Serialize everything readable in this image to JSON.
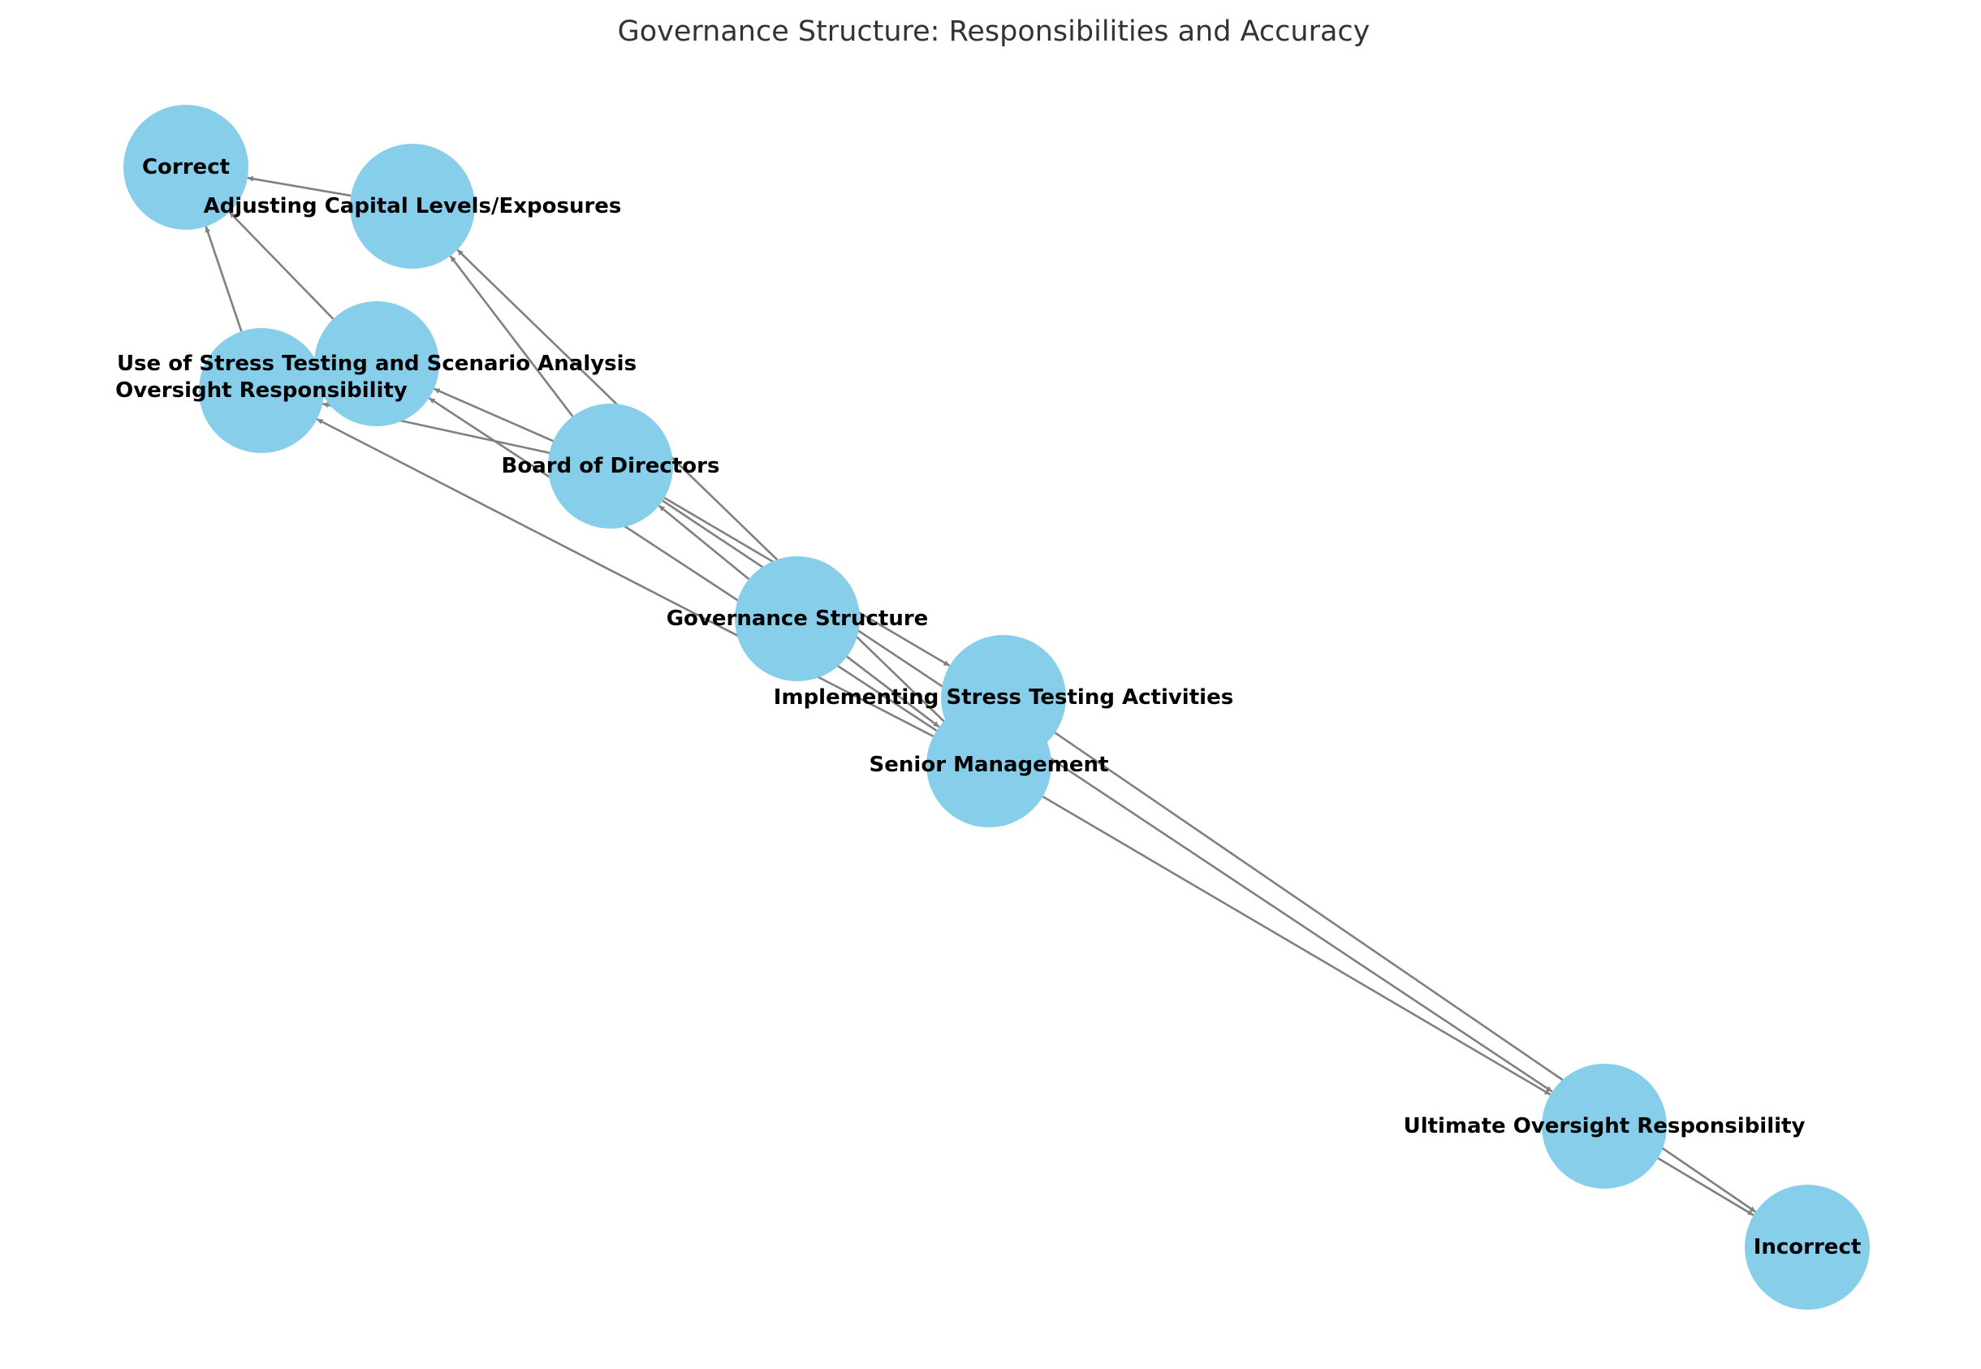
{
  "title": "Governance Structure: Responsibilities and Accuracy",
  "colors": {
    "node_fill": "#87CEEB",
    "edge": "#808080",
    "label": "#000000",
    "title": "#333333",
    "background": "#FFFFFF"
  },
  "nodes": [
    {
      "id": "governance",
      "label": "Governance Structure"
    },
    {
      "id": "board",
      "label": "Board of Directors"
    },
    {
      "id": "senior",
      "label": "Senior Management"
    },
    {
      "id": "oversight",
      "label": "Oversight Responsibility"
    },
    {
      "id": "use",
      "label": "Use of Stress Testing and Scenario Analysis"
    },
    {
      "id": "adjusting",
      "label": "Adjusting Capital Levels/Exposures"
    },
    {
      "id": "ultimate",
      "label": "Ultimate Oversight Responsibility"
    },
    {
      "id": "implementing",
      "label": "Implementing Stress Testing Activities"
    },
    {
      "id": "correct",
      "label": "Correct"
    },
    {
      "id": "incorrect",
      "label": "Incorrect"
    }
  ],
  "edges": [
    {
      "from": "governance",
      "to": "board"
    },
    {
      "from": "governance",
      "to": "senior"
    },
    {
      "from": "board",
      "to": "oversight"
    },
    {
      "from": "board",
      "to": "use"
    },
    {
      "from": "board",
      "to": "adjusting"
    },
    {
      "from": "board",
      "to": "ultimate"
    },
    {
      "from": "board",
      "to": "implementing"
    },
    {
      "from": "senior",
      "to": "oversight"
    },
    {
      "from": "senior",
      "to": "use"
    },
    {
      "from": "senior",
      "to": "adjusting"
    },
    {
      "from": "senior",
      "to": "ultimate"
    },
    {
      "from": "senior",
      "to": "implementing"
    },
    {
      "from": "oversight",
      "to": "correct"
    },
    {
      "from": "use",
      "to": "correct"
    },
    {
      "from": "adjusting",
      "to": "correct"
    },
    {
      "from": "ultimate",
      "to": "incorrect"
    },
    {
      "from": "implementing",
      "to": "incorrect"
    }
  ]
}
